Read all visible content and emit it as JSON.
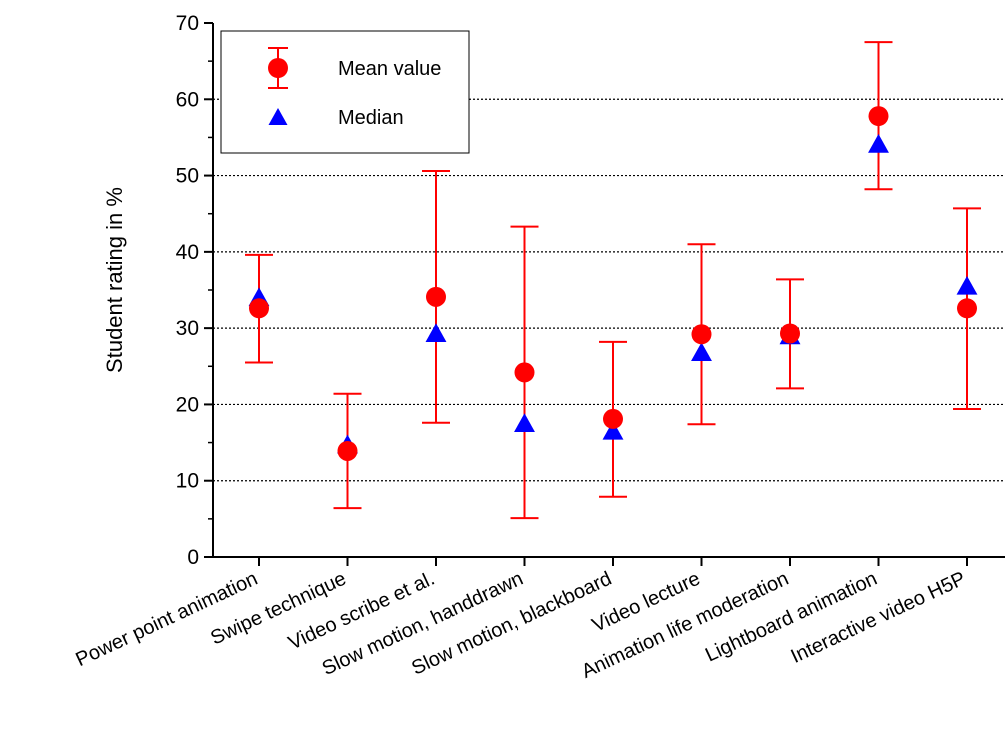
{
  "chart_data": {
    "type": "scatter",
    "categories": [
      "Power point animation",
      "Swipe technique",
      "Video scribe et al.",
      "Slow motion, handdrawn",
      "Slow motion, blackboard",
      "Video lecture",
      "Animation life moderation",
      "Lightboard animation",
      "Interactive video H5P"
    ],
    "series": [
      {
        "name": "Mean value",
        "marker": "circle",
        "color": "#ff0000",
        "values": [
          32.6,
          13.9,
          34.1,
          24.2,
          18.1,
          29.2,
          29.3,
          57.8,
          32.6
        ],
        "error_low": [
          25.5,
          6.4,
          17.6,
          5.1,
          7.9,
          17.4,
          22.1,
          48.2,
          19.4
        ],
        "error_high": [
          39.6,
          21.4,
          50.6,
          43.3,
          28.2,
          41.0,
          36.4,
          67.5,
          45.7
        ]
      },
      {
        "name": "Median",
        "marker": "triangle",
        "color": "#0000ff",
        "values": [
          33.9,
          14.6,
          29.2,
          17.4,
          16.4,
          26.7,
          28.9,
          54.0,
          35.4
        ]
      }
    ],
    "title": "",
    "xlabel": "",
    "ylabel": "Student rating in %",
    "ylim": [
      0,
      70
    ],
    "yticks": [
      0,
      10,
      20,
      30,
      40,
      50,
      60,
      70
    ],
    "grid": "horizontal dotted",
    "legend_position": "top-left"
  }
}
